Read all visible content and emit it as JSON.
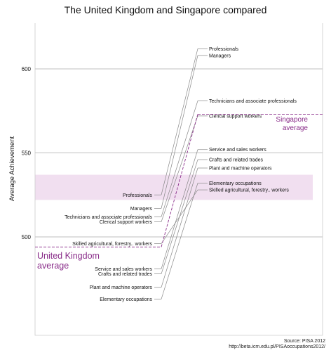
{
  "chart_data": {
    "type": "slope",
    "title": "The United Kingdom and Singapore compared",
    "ylabel": "Average Achievement",
    "ylim": [
      445,
      625
    ],
    "yticks": [
      500,
      550,
      600
    ],
    "band": [
      522,
      537
    ],
    "colors": {
      "average": "#8a2d8a",
      "band": "#f1dff0",
      "lines": "#888888",
      "grid": "#aaaaaa",
      "frame": "#cccccc"
    },
    "series": [
      {
        "name": "United Kingdom",
        "average_label": [
          "United Kingdom",
          "average"
        ],
        "average": 494,
        "points": [
          {
            "label": "Professionals",
            "value": 525
          },
          {
            "label": "Managers",
            "value": 517
          },
          {
            "label": "Technicians and associate professionals",
            "value": 512
          },
          {
            "label": "Clerical support workers",
            "value": 509
          },
          {
            "label": "Skilled agricultural, forestry.. workers",
            "value": 496
          },
          {
            "label": "Service and sales workers",
            "value": 481
          },
          {
            "label": "Crafts and related trades",
            "value": 478
          },
          {
            "label": "Plant and machine operators",
            "value": 470
          },
          {
            "label": "Elementary occupations",
            "value": 463
          }
        ]
      },
      {
        "name": "Singapore",
        "average_label": [
          "Singapore",
          "average"
        ],
        "average": 573,
        "points": [
          {
            "label": "Professionals",
            "value": 612
          },
          {
            "label": "Managers",
            "value": 608
          },
          {
            "label": "Technicians and associate professionals",
            "value": 581
          },
          {
            "label": "Clerical support workers",
            "value": 572
          },
          {
            "label": "Service and sales workers",
            "value": 552
          },
          {
            "label": "Crafts and related trades",
            "value": 546
          },
          {
            "label": "Plant and machine operators",
            "value": 541
          },
          {
            "label": "Elementary occupations",
            "value": 532
          },
          {
            "label": "Skilled agricultural, forestry.. workers",
            "value": 528
          }
        ]
      }
    ],
    "source": [
      "Source: PISA 2012",
      "http://beta.icm.edu.pl/PISAoccupations2012/"
    ]
  }
}
